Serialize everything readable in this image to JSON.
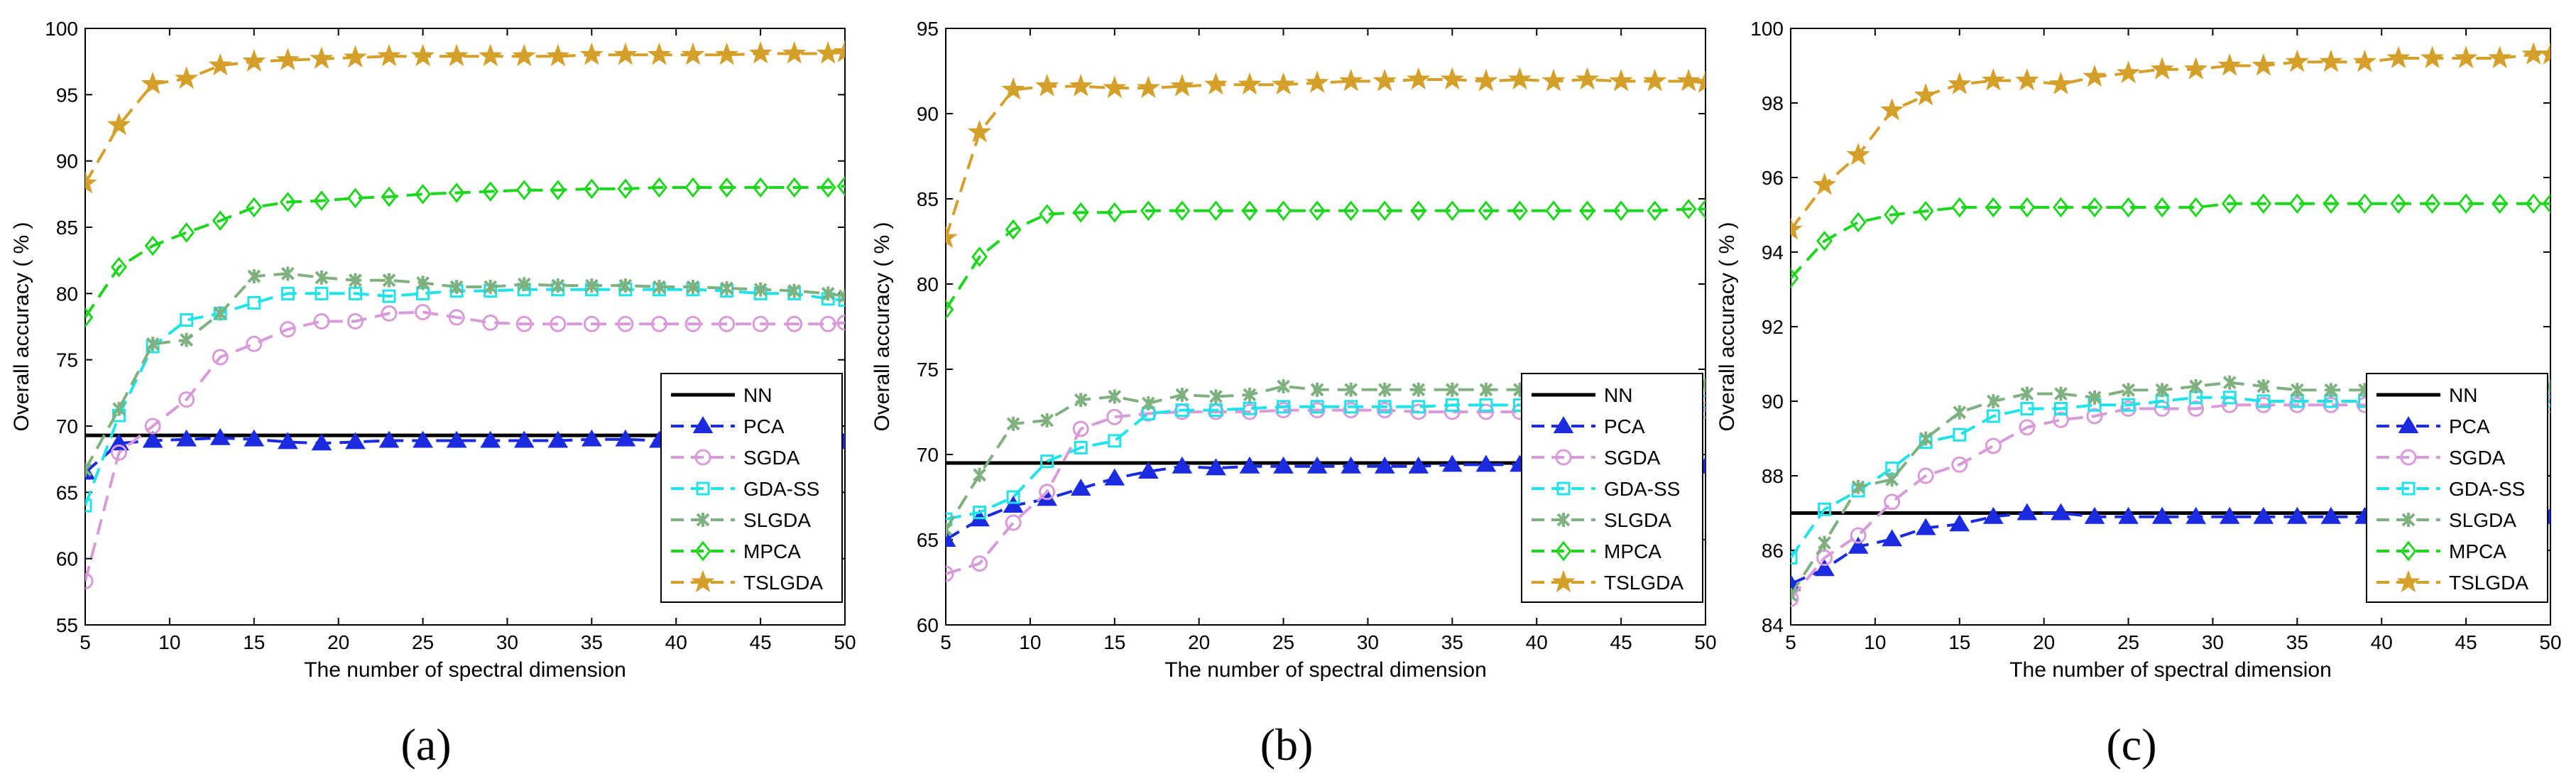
{
  "colors": {
    "NN": "#000000",
    "PCA": "#1a2be0",
    "SGDA": "#d99ad9",
    "GDA-SS": "#1fe3e8",
    "SLGDA": "#7fb07f",
    "MPCA": "#1fd61f",
    "TSLGDA": "#d4a02a"
  },
  "chart_data": [
    {
      "type": "line",
      "caption": "(a)",
      "xlabel": "The number of spectral dimension",
      "ylabel": "Overall accuracy ( % )",
      "xlim": [
        5,
        50
      ],
      "ylim": [
        55,
        100
      ],
      "xticks": [
        5,
        10,
        15,
        20,
        25,
        30,
        35,
        40,
        45,
        50
      ],
      "yticks": [
        55,
        60,
        65,
        70,
        75,
        80,
        85,
        90,
        95,
        100
      ],
      "x": [
        5,
        7,
        9,
        11,
        13,
        15,
        17,
        19,
        21,
        23,
        25,
        27,
        29,
        31,
        33,
        35,
        37,
        39,
        41,
        43,
        45,
        47,
        49,
        50
      ],
      "series": [
        {
          "name": "NN",
          "marker": "none",
          "values": [
            69.3,
            69.3,
            69.3,
            69.3,
            69.3,
            69.3,
            69.3,
            69.3,
            69.3,
            69.3,
            69.3,
            69.3,
            69.3,
            69.3,
            69.3,
            69.3,
            69.3,
            69.3,
            69.3,
            69.3,
            69.3,
            69.3,
            69.3,
            69.3
          ]
        },
        {
          "name": "PCA",
          "marker": "triangle",
          "values": [
            66.5,
            68.7,
            68.9,
            69.0,
            69.1,
            69.0,
            68.8,
            68.7,
            68.8,
            68.9,
            68.9,
            68.9,
            68.9,
            68.9,
            68.9,
            69.0,
            69.0,
            68.9,
            68.9,
            68.9,
            68.9,
            68.9,
            68.8,
            68.8
          ]
        },
        {
          "name": "SGDA",
          "marker": "circle",
          "values": [
            58.3,
            68.0,
            70.0,
            72.0,
            75.2,
            76.2,
            77.3,
            77.9,
            77.9,
            78.5,
            78.6,
            78.2,
            77.8,
            77.7,
            77.7,
            77.7,
            77.7,
            77.7,
            77.7,
            77.7,
            77.7,
            77.7,
            77.7,
            77.8
          ]
        },
        {
          "name": "GDA-SS",
          "marker": "square",
          "values": [
            64.0,
            70.8,
            76.0,
            78.0,
            78.5,
            79.3,
            80.0,
            80.0,
            80.0,
            79.8,
            80.0,
            80.2,
            80.2,
            80.3,
            80.3,
            80.3,
            80.3,
            80.3,
            80.3,
            80.2,
            80.0,
            80.0,
            79.6,
            79.5
          ]
        },
        {
          "name": "SLGDA",
          "marker": "x",
          "values": [
            66.7,
            71.3,
            76.2,
            76.5,
            78.5,
            81.3,
            81.5,
            81.2,
            81.0,
            81.0,
            80.8,
            80.5,
            80.5,
            80.7,
            80.6,
            80.6,
            80.6,
            80.5,
            80.5,
            80.4,
            80.3,
            80.2,
            80.0,
            79.8
          ]
        },
        {
          "name": "MPCA",
          "marker": "diamond",
          "values": [
            78.2,
            82.0,
            83.6,
            84.6,
            85.5,
            86.5,
            86.9,
            87.0,
            87.2,
            87.3,
            87.5,
            87.6,
            87.7,
            87.8,
            87.8,
            87.9,
            87.9,
            88.0,
            88.0,
            88.0,
            88.0,
            88.0,
            88.0,
            88.1
          ]
        },
        {
          "name": "TSLGDA",
          "marker": "star",
          "values": [
            88.3,
            92.7,
            95.8,
            96.2,
            97.2,
            97.5,
            97.6,
            97.7,
            97.8,
            97.9,
            97.9,
            97.9,
            97.9,
            97.9,
            97.9,
            98.0,
            98.0,
            98.0,
            98.0,
            98.0,
            98.1,
            98.1,
            98.1,
            98.2
          ]
        }
      ]
    },
    {
      "type": "line",
      "caption": "(b)",
      "xlabel": "The number of spectral dimension",
      "ylabel": "Overall accuracy ( % )",
      "xlim": [
        5,
        50
      ],
      "ylim": [
        60,
        95
      ],
      "xticks": [
        5,
        10,
        15,
        20,
        25,
        30,
        35,
        40,
        45,
        50
      ],
      "yticks": [
        60,
        65,
        70,
        75,
        80,
        85,
        90,
        95
      ],
      "x": [
        5,
        7,
        9,
        11,
        13,
        15,
        17,
        19,
        21,
        23,
        25,
        27,
        29,
        31,
        33,
        35,
        37,
        39,
        41,
        43,
        45,
        47,
        49,
        50
      ],
      "series": [
        {
          "name": "NN",
          "marker": "none",
          "values": [
            69.5,
            69.5,
            69.5,
            69.5,
            69.5,
            69.5,
            69.5,
            69.5,
            69.5,
            69.5,
            69.5,
            69.5,
            69.5,
            69.5,
            69.5,
            69.5,
            69.5,
            69.5,
            69.5,
            69.5,
            69.5,
            69.5,
            69.5,
            69.5
          ]
        },
        {
          "name": "PCA",
          "marker": "triangle",
          "values": [
            65.0,
            66.2,
            67.0,
            67.4,
            68.0,
            68.6,
            69.0,
            69.3,
            69.2,
            69.3,
            69.3,
            69.3,
            69.3,
            69.3,
            69.3,
            69.4,
            69.4,
            69.4,
            69.3,
            69.3,
            69.3,
            69.3,
            69.3,
            69.3
          ]
        },
        {
          "name": "SGDA",
          "marker": "circle",
          "values": [
            63.0,
            63.6,
            66.0,
            67.8,
            71.5,
            72.2,
            72.4,
            72.5,
            72.5,
            72.5,
            72.6,
            72.6,
            72.6,
            72.6,
            72.5,
            72.5,
            72.5,
            72.5,
            72.5,
            72.5,
            72.5,
            72.5,
            72.5,
            72.6
          ]
        },
        {
          "name": "GDA-SS",
          "marker": "square",
          "values": [
            66.2,
            66.6,
            67.5,
            69.6,
            70.4,
            70.8,
            72.4,
            72.6,
            72.6,
            72.7,
            72.8,
            72.8,
            72.8,
            72.8,
            72.8,
            72.9,
            72.9,
            72.9,
            72.9,
            72.9,
            72.9,
            72.9,
            72.9,
            73.1
          ]
        },
        {
          "name": "SLGDA",
          "marker": "x",
          "values": [
            65.6,
            68.8,
            71.8,
            72.0,
            73.2,
            73.4,
            73.0,
            73.5,
            73.4,
            73.5,
            74.0,
            73.8,
            73.8,
            73.8,
            73.8,
            73.8,
            73.8,
            73.8,
            73.8,
            73.8,
            73.8,
            73.8,
            73.8,
            74.1
          ]
        },
        {
          "name": "MPCA",
          "marker": "diamond",
          "values": [
            78.5,
            81.6,
            83.2,
            84.1,
            84.2,
            84.2,
            84.3,
            84.3,
            84.3,
            84.3,
            84.3,
            84.3,
            84.3,
            84.3,
            84.3,
            84.3,
            84.3,
            84.3,
            84.3,
            84.3,
            84.3,
            84.3,
            84.4,
            84.4
          ]
        },
        {
          "name": "TSLGDA",
          "marker": "star",
          "values": [
            82.7,
            88.9,
            91.4,
            91.6,
            91.6,
            91.5,
            91.5,
            91.6,
            91.7,
            91.7,
            91.7,
            91.8,
            91.9,
            91.9,
            92.0,
            92.0,
            91.9,
            92.0,
            91.9,
            92.0,
            91.9,
            91.9,
            91.9,
            91.8
          ]
        }
      ]
    },
    {
      "type": "line",
      "caption": "(c)",
      "xlabel": "The number of spectral dimension",
      "ylabel": "Overall accuracy ( % )",
      "xlim": [
        5,
        50
      ],
      "ylim": [
        84,
        100
      ],
      "xticks": [
        5,
        10,
        15,
        20,
        25,
        30,
        35,
        40,
        45,
        50
      ],
      "yticks": [
        84,
        86,
        88,
        90,
        92,
        94,
        96,
        98,
        100
      ],
      "x": [
        5,
        7,
        9,
        11,
        13,
        15,
        17,
        19,
        21,
        23,
        25,
        27,
        29,
        31,
        33,
        35,
        37,
        39,
        41,
        43,
        45,
        47,
        49,
        50
      ],
      "series": [
        {
          "name": "NN",
          "marker": "none",
          "values": [
            87.0,
            87.0,
            87.0,
            87.0,
            87.0,
            87.0,
            87.0,
            87.0,
            87.0,
            87.0,
            87.0,
            87.0,
            87.0,
            87.0,
            87.0,
            87.0,
            87.0,
            87.0,
            87.0,
            87.0,
            87.0,
            87.0,
            87.0,
            87.0
          ]
        },
        {
          "name": "PCA",
          "marker": "triangle",
          "values": [
            85.1,
            85.5,
            86.1,
            86.3,
            86.6,
            86.7,
            86.9,
            87.0,
            87.0,
            86.9,
            86.9,
            86.9,
            86.9,
            86.9,
            86.9,
            86.9,
            86.9,
            86.9,
            86.9,
            86.9,
            86.9,
            86.9,
            86.9,
            86.9
          ]
        },
        {
          "name": "SGDA",
          "marker": "circle",
          "values": [
            84.7,
            85.8,
            86.4,
            87.3,
            88.0,
            88.3,
            88.8,
            89.3,
            89.5,
            89.6,
            89.8,
            89.8,
            89.8,
            89.9,
            89.9,
            89.9,
            89.9,
            89.9,
            89.9,
            89.9,
            89.9,
            89.9,
            89.9,
            89.9
          ]
        },
        {
          "name": "GDA-SS",
          "marker": "square",
          "values": [
            85.8,
            87.1,
            87.6,
            88.2,
            88.9,
            89.1,
            89.6,
            89.8,
            89.8,
            89.9,
            89.9,
            90.0,
            90.1,
            90.1,
            90.0,
            90.0,
            90.0,
            90.0,
            90.0,
            90.0,
            90.0,
            90.0,
            90.0,
            90.0
          ]
        },
        {
          "name": "SLGDA",
          "marker": "x",
          "values": [
            84.8,
            86.2,
            87.7,
            87.9,
            89.0,
            89.7,
            90.0,
            90.2,
            90.2,
            90.1,
            90.3,
            90.3,
            90.4,
            90.5,
            90.4,
            90.3,
            90.3,
            90.3,
            90.3,
            90.3,
            90.3,
            90.3,
            90.3,
            90.4
          ]
        },
        {
          "name": "MPCA",
          "marker": "diamond",
          "values": [
            93.3,
            94.3,
            94.8,
            95.0,
            95.1,
            95.2,
            95.2,
            95.2,
            95.2,
            95.2,
            95.2,
            95.2,
            95.2,
            95.3,
            95.3,
            95.3,
            95.3,
            95.3,
            95.3,
            95.3,
            95.3,
            95.3,
            95.3,
            95.3
          ]
        },
        {
          "name": "TSLGDA",
          "marker": "star",
          "values": [
            94.6,
            95.8,
            96.6,
            97.8,
            98.2,
            98.5,
            98.6,
            98.6,
            98.5,
            98.7,
            98.8,
            98.9,
            98.9,
            99.0,
            99.0,
            99.1,
            99.1,
            99.1,
            99.2,
            99.2,
            99.2,
            99.2,
            99.3,
            99.3
          ]
        }
      ]
    }
  ]
}
